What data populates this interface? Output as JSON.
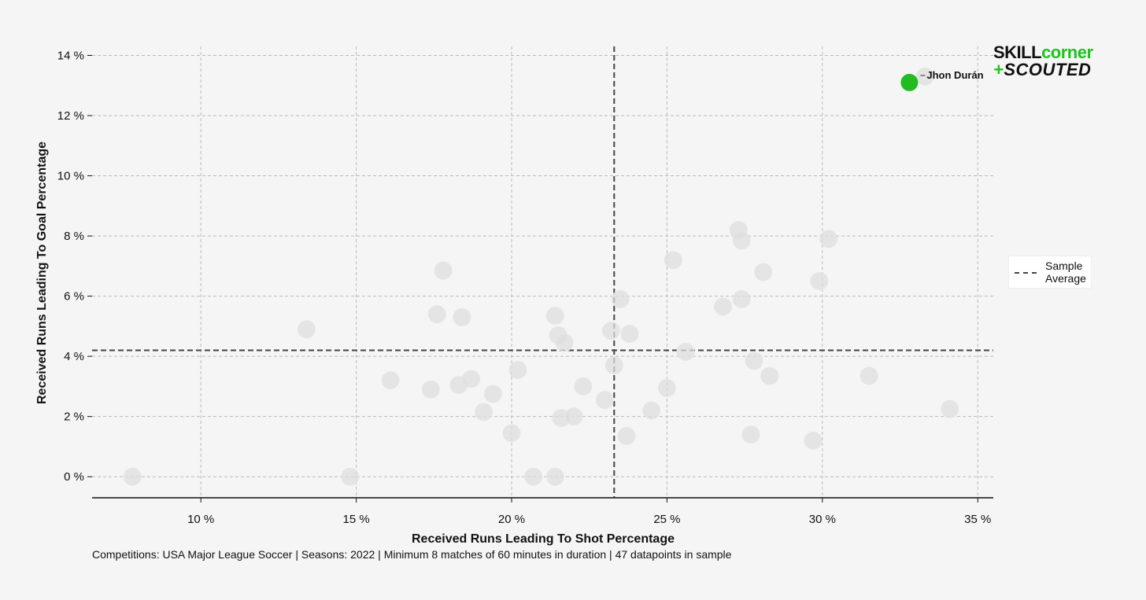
{
  "chart_data": {
    "type": "scatter",
    "xlabel": "Received Runs Leading To Shot Percentage",
    "ylabel": "Received Runs Leading To Goal Percentage",
    "xlim": [
      6.5,
      35.5
    ],
    "ylim": [
      -0.7,
      14.3
    ],
    "xticks": [
      10,
      15,
      20,
      25,
      30,
      35
    ],
    "yticks": [
      0,
      2,
      4,
      6,
      8,
      10,
      12,
      14
    ],
    "tick_suffix": " %",
    "grid": true,
    "average_x": 23.3,
    "average_y": 4.2,
    "legend": {
      "label_line1": "Sample",
      "label_line2": "Average",
      "placement": "right"
    },
    "highlight": {
      "name": "Jhon Durán",
      "x": 32.8,
      "y": 13.1,
      "color": "#22bb22"
    },
    "points": [
      {
        "x": 7.8,
        "y": 0.0
      },
      {
        "x": 13.4,
        "y": 4.9
      },
      {
        "x": 14.8,
        "y": 0.0
      },
      {
        "x": 16.1,
        "y": 3.2
      },
      {
        "x": 17.4,
        "y": 2.9
      },
      {
        "x": 17.6,
        "y": 5.4
      },
      {
        "x": 17.8,
        "y": 6.85
      },
      {
        "x": 18.3,
        "y": 3.05
      },
      {
        "x": 18.4,
        "y": 5.3
      },
      {
        "x": 18.7,
        "y": 3.25
      },
      {
        "x": 19.1,
        "y": 2.15
      },
      {
        "x": 19.4,
        "y": 2.75
      },
      {
        "x": 20.0,
        "y": 1.45
      },
      {
        "x": 20.2,
        "y": 3.55
      },
      {
        "x": 20.7,
        "y": 0.0
      },
      {
        "x": 21.4,
        "y": 0.0
      },
      {
        "x": 21.4,
        "y": 5.35
      },
      {
        "x": 21.5,
        "y": 4.7
      },
      {
        "x": 21.6,
        "y": 1.95
      },
      {
        "x": 21.7,
        "y": 4.45
      },
      {
        "x": 22.0,
        "y": 2.0
      },
      {
        "x": 22.3,
        "y": 3.0
      },
      {
        "x": 23.0,
        "y": 2.55
      },
      {
        "x": 23.2,
        "y": 4.85
      },
      {
        "x": 23.3,
        "y": 3.7
      },
      {
        "x": 23.5,
        "y": 5.9
      },
      {
        "x": 23.7,
        "y": 1.35
      },
      {
        "x": 23.8,
        "y": 4.75
      },
      {
        "x": 24.5,
        "y": 2.2
      },
      {
        "x": 25.0,
        "y": 2.95
      },
      {
        "x": 25.2,
        "y": 7.2
      },
      {
        "x": 25.6,
        "y": 4.15
      },
      {
        "x": 26.8,
        "y": 5.65
      },
      {
        "x": 27.3,
        "y": 8.2
      },
      {
        "x": 27.4,
        "y": 7.85
      },
      {
        "x": 27.4,
        "y": 5.9
      },
      {
        "x": 27.7,
        "y": 1.4
      },
      {
        "x": 27.8,
        "y": 3.85
      },
      {
        "x": 28.1,
        "y": 6.8
      },
      {
        "x": 28.3,
        "y": 3.35
      },
      {
        "x": 29.7,
        "y": 1.2
      },
      {
        "x": 29.9,
        "y": 6.5
      },
      {
        "x": 30.2,
        "y": 7.9
      },
      {
        "x": 31.5,
        "y": 3.35
      },
      {
        "x": 33.3,
        "y": 13.3
      },
      {
        "x": 34.1,
        "y": 2.25
      }
    ]
  },
  "footnote": "Competitions: USA Major League Soccer | Seasons: 2022 | Minimum 8 matches of 60 minutes in duration | 47 datapoints in sample",
  "logo": {
    "line1_a": "SKILL",
    "line1_b": "corner",
    "line2_a": "+",
    "line2_b": "SCOUTED",
    "green": "#1ec21e",
    "dark": "#111111"
  }
}
